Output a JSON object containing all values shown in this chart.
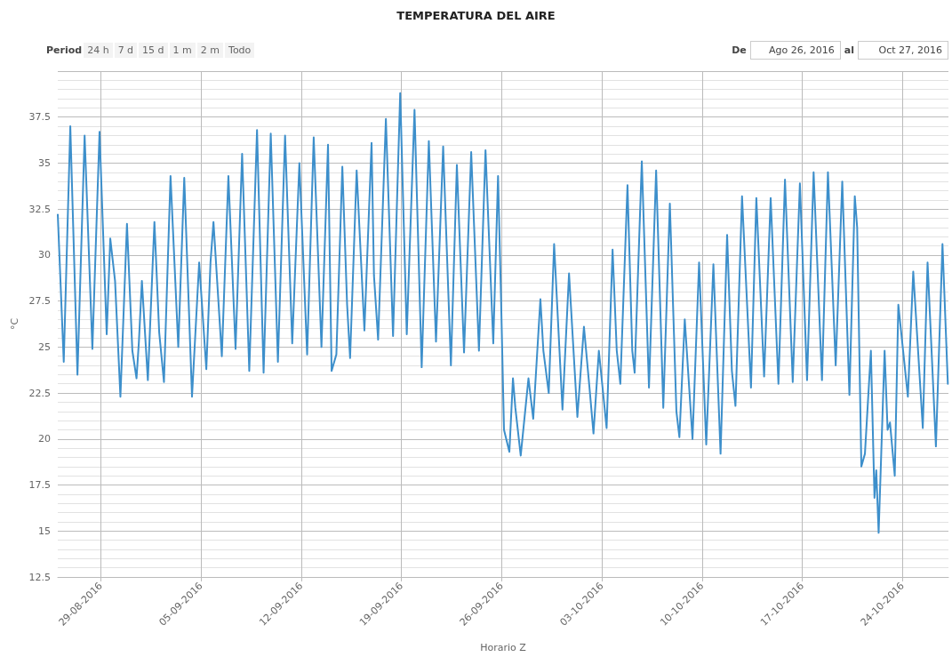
{
  "chart_data": {
    "type": "line",
    "title": "TEMPERATURA DEL AIRE",
    "xlabel": "Horario Z",
    "ylabel": "°C",
    "annotations": [
      "Period",
      "24 h",
      "7 d",
      "15 d",
      "1 m",
      "2 m",
      "Todo",
      "De",
      "Ago 26, 2016",
      "al",
      "Oct 27, 2016"
    ],
    "xlim": [
      "2016-08-26T00:00",
      "2016-10-27T05:00"
    ],
    "xticks": [
      {
        "value": "2016-08-29",
        "label": "29-08-2016"
      },
      {
        "value": "2016-09-05",
        "label": "05-09-2016"
      },
      {
        "value": "2016-09-12",
        "label": "12-09-2016"
      },
      {
        "value": "2016-09-19",
        "label": "19-09-2016"
      },
      {
        "value": "2016-09-26",
        "label": "26-09-2016"
      },
      {
        "value": "2016-10-03",
        "label": "03-10-2016"
      },
      {
        "value": "2016-10-10",
        "label": "10-10-2016"
      },
      {
        "value": "2016-10-17",
        "label": "17-10-2016"
      },
      {
        "value": "2016-10-24",
        "label": "24-10-2016"
      }
    ],
    "ylim": [
      12.5,
      40
    ],
    "yticks": [
      12.5,
      15,
      17.5,
      20,
      22.5,
      25,
      27.5,
      30,
      32.5,
      35,
      37.5
    ],
    "grid": true,
    "x": [
      "2016-08-26T00:00",
      "2016-08-26T10:00",
      "2016-08-26T21:00",
      "2016-08-27T09:00",
      "2016-08-27T21:00",
      "2016-08-28T10:00",
      "2016-08-28T22:00",
      "2016-08-29T10:00",
      "2016-08-29T16:00",
      "2016-08-30T00:00",
      "2016-08-30T09:00",
      "2016-08-30T20:00",
      "2016-08-31T05:00",
      "2016-08-31T12:00",
      "2016-08-31T16:00",
      "2016-08-31T21:00",
      "2016-09-01T07:00",
      "2016-09-01T18:00",
      "2016-09-02T02:00",
      "2016-09-02T10:00",
      "2016-09-02T21:00",
      "2016-09-03T10:00",
      "2016-09-03T20:00",
      "2016-09-04T09:00",
      "2016-09-04T21:00",
      "2016-09-05T09:00",
      "2016-09-05T16:00",
      "2016-09-05T21:00",
      "2016-09-06T11:00",
      "2016-09-06T22:00",
      "2016-09-07T10:00",
      "2016-09-07T21:00",
      "2016-09-08T09:00",
      "2016-09-08T22:00",
      "2016-09-09T09:00",
      "2016-09-09T21:00",
      "2016-09-10T09:00",
      "2016-09-10T21:00",
      "2016-09-11T09:00",
      "2016-09-11T21:00",
      "2016-09-12T10:00",
      "2016-09-12T21:00",
      "2016-09-13T10:00",
      "2016-09-13T21:00",
      "2016-09-14T03:00",
      "2016-09-14T11:00",
      "2016-09-14T21:00",
      "2016-09-15T05:00",
      "2016-09-15T10:00",
      "2016-09-15T21:00",
      "2016-09-16T10:00",
      "2016-09-16T22:00",
      "2016-09-17T02:00",
      "2016-09-17T09:00",
      "2016-09-17T22:00",
      "2016-09-18T10:00",
      "2016-09-18T22:00",
      "2016-09-19T09:00",
      "2016-09-19T22:00",
      "2016-09-20T10:00",
      "2016-09-20T22:00",
      "2016-09-21T10:00",
      "2016-09-21T22:00",
      "2016-09-22T11:00",
      "2016-09-22T21:00",
      "2016-09-23T09:00",
      "2016-09-23T21:00",
      "2016-09-24T10:00",
      "2016-09-24T21:00",
      "2016-09-25T10:00",
      "2016-09-25T18:00",
      "2016-09-25T23:00",
      "2016-09-26T04:00",
      "2016-09-26T13:00",
      "2016-09-26T19:00",
      "2016-09-26T23:00",
      "2016-09-27T08:00",
      "2016-09-27T21:00",
      "2016-09-28T05:00",
      "2016-09-28T17:00",
      "2016-09-28T22:00",
      "2016-09-29T07:00",
      "2016-09-29T16:00",
      "2016-09-30T06:00",
      "2016-09-30T17:00",
      "2016-10-01T07:00",
      "2016-10-01T18:00",
      "2016-10-02T03:00",
      "2016-10-02T10:00",
      "2016-10-02T19:00",
      "2016-10-03T08:00",
      "2016-10-03T18:00",
      "2016-10-04T01:00",
      "2016-10-04T07:00",
      "2016-10-04T19:00",
      "2016-10-05T03:00",
      "2016-10-05T07:00",
      "2016-10-05T19:00",
      "2016-10-06T07:00",
      "2016-10-06T19:00",
      "2016-10-07T07:00",
      "2016-10-07T18:00",
      "2016-10-08T05:00",
      "2016-10-08T10:00",
      "2016-10-08T19:00",
      "2016-10-09T08:00",
      "2016-10-09T19:00",
      "2016-10-10T07:00",
      "2016-10-10T19:00",
      "2016-10-11T07:00",
      "2016-10-11T18:00",
      "2016-10-12T02:00",
      "2016-10-12T08:00",
      "2016-10-12T19:00",
      "2016-10-13T10:00",
      "2016-10-13T19:00",
      "2016-10-14T08:00",
      "2016-10-14T19:00",
      "2016-10-15T08:00",
      "2016-10-15T19:00",
      "2016-10-16T08:00",
      "2016-10-16T20:00",
      "2016-10-17T08:00",
      "2016-10-17T19:00",
      "2016-10-18T09:00",
      "2016-10-18T19:00",
      "2016-10-19T08:00",
      "2016-10-19T19:00",
      "2016-10-20T07:00",
      "2016-10-20T16:00",
      "2016-10-20T20:00",
      "2016-10-21T03:00",
      "2016-10-21T09:00",
      "2016-10-21T19:00",
      "2016-10-22T01:00",
      "2016-10-22T04:00",
      "2016-10-22T08:00",
      "2016-10-22T18:00",
      "2016-10-22T23:00",
      "2016-10-23T03:00",
      "2016-10-23T11:00",
      "2016-10-23T17:00",
      "2016-10-24T09:00",
      "2016-10-24T18:00",
      "2016-10-25T10:00",
      "2016-10-25T18:00",
      "2016-10-26T08:00",
      "2016-10-26T19:00",
      "2016-10-27T04:00"
    ],
    "series": [
      {
        "color": "#3d8fcb",
        "values": [
          32.2,
          24.2,
          37.0,
          23.5,
          36.5,
          24.9,
          36.7,
          25.7,
          30.9,
          28.6,
          22.3,
          31.7,
          24.8,
          23.3,
          25.3,
          28.6,
          23.2,
          31.8,
          25.8,
          23.1,
          34.3,
          25.0,
          34.2,
          22.3,
          29.6,
          23.8,
          29.6,
          31.8,
          24.5,
          34.3,
          24.9,
          35.5,
          23.7,
          36.8,
          23.6,
          36.6,
          24.2,
          36.5,
          25.2,
          35.0,
          24.6,
          36.4,
          25.0,
          36.0,
          23.7,
          24.6,
          34.8,
          27.3,
          24.4,
          34.6,
          25.9,
          36.1,
          28.9,
          25.4,
          37.4,
          25.6,
          38.8,
          25.7,
          37.9,
          23.9,
          36.2,
          25.3,
          35.9,
          24.0,
          34.9,
          24.7,
          35.6,
          24.8,
          35.7,
          25.2,
          34.3,
          27.7,
          20.5,
          19.3,
          23.3,
          21.7,
          19.1,
          23.3,
          21.1,
          27.6,
          24.8,
          22.5,
          30.6,
          21.6,
          29.0,
          21.2,
          26.1,
          22.9,
          20.3,
          24.8,
          20.6,
          30.3,
          24.8,
          23.0,
          33.8,
          24.8,
          23.6,
          35.1,
          22.8,
          34.6,
          21.7,
          32.8,
          21.5,
          20.1,
          26.5,
          20.0,
          29.6,
          19.7,
          29.5,
          19.2,
          31.1,
          23.7,
          21.8,
          33.2,
          22.8,
          33.1,
          23.4,
          33.1,
          23.0,
          34.1,
          23.1,
          33.9,
          23.2,
          34.5,
          23.2,
          34.5,
          24.0,
          34.0,
          22.4,
          33.2,
          31.5,
          18.5,
          19.2,
          24.8,
          16.8,
          18.3,
          14.9,
          24.8,
          20.5,
          20.9,
          18.0,
          27.3,
          22.3,
          29.1,
          20.6,
          29.6,
          19.6,
          30.6,
          23.0
        ]
      }
    ]
  }
}
